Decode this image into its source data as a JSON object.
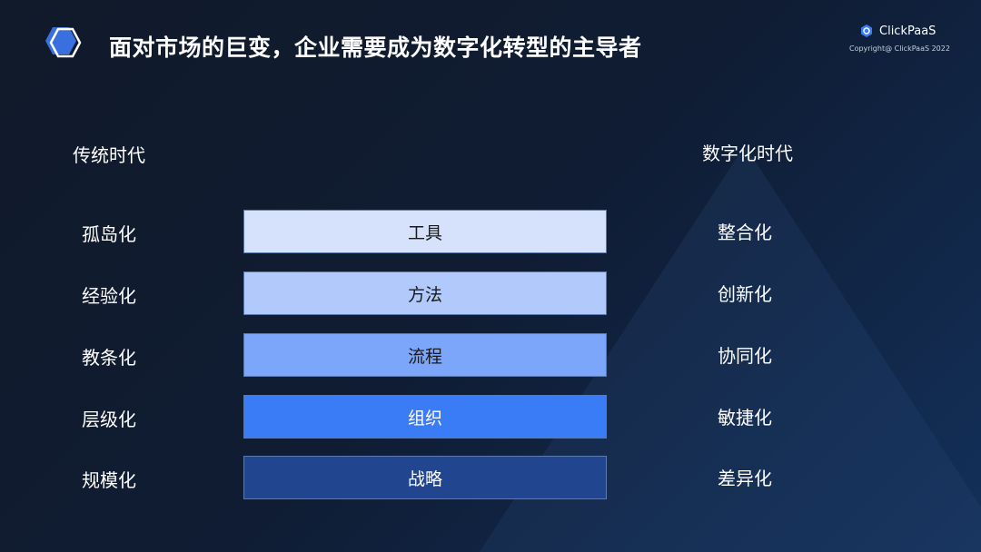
{
  "title": "面对市场的巨变，企业需要成为数字化转型的主导者",
  "brand": {
    "name": "ClickPaaS",
    "copyright": "Copyright@ ClickPaaS 2022"
  },
  "left_header": "传统时代",
  "right_header": "数字化时代",
  "rows": [
    {
      "left": "孤岛化",
      "center": "工具",
      "right": "整合化",
      "color": "#d6e2fb",
      "text_color": "#1a1a1a"
    },
    {
      "left": "经验化",
      "center": "方法",
      "right": "创新化",
      "color": "#b1c9fb",
      "text_color": "#1a1a1a"
    },
    {
      "left": "教条化",
      "center": "流程",
      "right": "协同化",
      "color": "#7ca6f9",
      "text_color": "#1a1a1a"
    },
    {
      "left": "层级化",
      "center": "组织",
      "right": "敏捷化",
      "color": "#3a7bf6",
      "text_color": "#ffffff"
    },
    {
      "left": "规模化",
      "center": "战略",
      "right": "差异化",
      "color": "#21468f",
      "text_color": "#ffffff"
    }
  ]
}
